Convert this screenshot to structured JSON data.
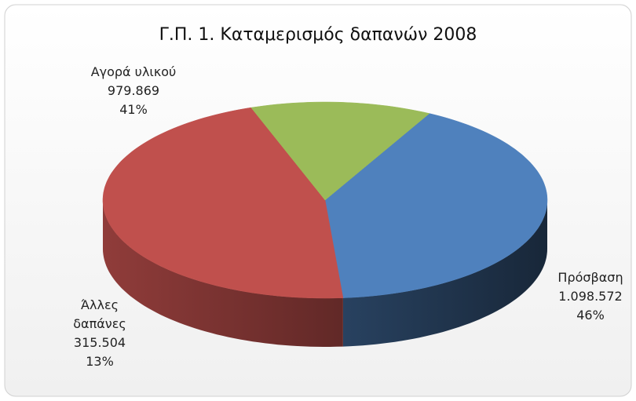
{
  "chart_data": {
    "type": "pie3d",
    "title": "Γ.Π. 1. Καταμερισμός δαπανών 2008",
    "categories": [
      "Αγορά υλικού",
      "Πρόσβαση",
      "Άλλες δαπάνες"
    ],
    "values": [
      979869,
      1098572,
      315504
    ],
    "value_labels": [
      "979.869",
      "1.098.572",
      "315.504"
    ],
    "percent_labels": [
      "41%",
      "46%",
      "13%"
    ],
    "colors": [
      "#4f81bd",
      "#c0504d",
      "#9bbb59"
    ]
  }
}
